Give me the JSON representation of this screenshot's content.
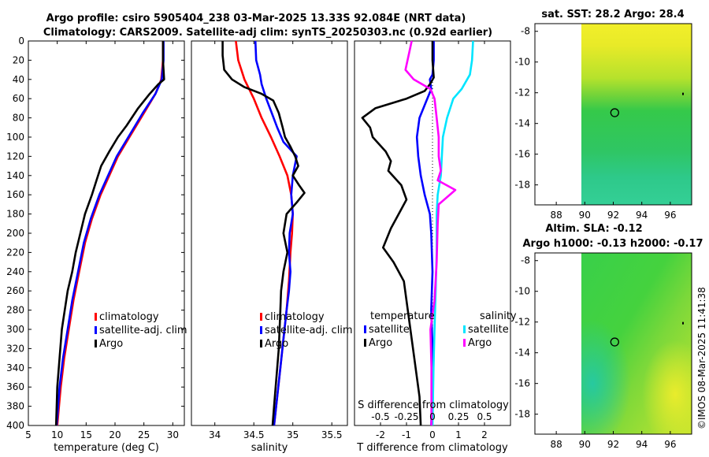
{
  "titles": {
    "line1": "Argo profile: csiro 5905404_238 03-Mar-2025 13.33S 92.084E (NRT data)",
    "line2": "Climatology: CARS2009. Satellite-adj clim: synTS_20250303.nc (0.92d earlier)"
  },
  "footer": "©IMOS 08-Mar-2025 11:41:38",
  "colors": {
    "climatology": "#ff0000",
    "satellite": "#0000ff",
    "argo": "#000000",
    "sal_satellite": "#00e5ff",
    "sal_argo": "#ff00ff",
    "frame": "#000000"
  },
  "chart_data": [
    {
      "type": "line",
      "id": "temperature",
      "xlabel": "temperature (deg C)",
      "ylabel": "",
      "xlim": [
        5,
        32
      ],
      "ylim": [
        400,
        0
      ],
      "xticks": [
        5,
        10,
        15,
        20,
        25,
        30
      ],
      "yticks": [
        0,
        20,
        40,
        60,
        80,
        100,
        120,
        140,
        160,
        180,
        200,
        220,
        240,
        260,
        280,
        300,
        320,
        340,
        360,
        380,
        400
      ],
      "legend": [
        "climatology",
        "satellite-adj. clim",
        "Argo"
      ],
      "series": [
        {
          "name": "climatology",
          "color": "#ff0000",
          "points": [
            [
              28.3,
              0
            ],
            [
              28.3,
              20
            ],
            [
              28.0,
              40
            ],
            [
              27.0,
              55
            ],
            [
              25.0,
              75
            ],
            [
              22.5,
              100
            ],
            [
              20.5,
              120
            ],
            [
              19.0,
              140
            ],
            [
              17.5,
              160
            ],
            [
              16.0,
              185
            ],
            [
              14.8,
              210
            ],
            [
              13.8,
              240
            ],
            [
              12.8,
              270
            ],
            [
              12.0,
              300
            ],
            [
              11.2,
              330
            ],
            [
              10.6,
              360
            ],
            [
              10.0,
              400
            ]
          ]
        },
        {
          "name": "satellite-adj. clim",
          "color": "#0000ff",
          "points": [
            [
              28.4,
              0
            ],
            [
              28.4,
              20
            ],
            [
              28.1,
              40
            ],
            [
              27.0,
              55
            ],
            [
              24.8,
              75
            ],
            [
              22.3,
              100
            ],
            [
              20.3,
              120
            ],
            [
              18.8,
              140
            ],
            [
              17.3,
              160
            ],
            [
              15.8,
              185
            ],
            [
              14.6,
              210
            ],
            [
              13.6,
              240
            ],
            [
              12.6,
              270
            ],
            [
              11.8,
              300
            ],
            [
              11.0,
              330
            ],
            [
              10.4,
              360
            ],
            [
              9.9,
              400
            ]
          ]
        },
        {
          "name": "Argo",
          "color": "#000000",
          "points": [
            [
              28.3,
              0
            ],
            [
              28.3,
              20
            ],
            [
              28.5,
              40
            ],
            [
              27.5,
              45
            ],
            [
              26.0,
              55
            ],
            [
              24.0,
              70
            ],
            [
              22.0,
              88
            ],
            [
              20.5,
              100
            ],
            [
              19.0,
              115
            ],
            [
              17.6,
              130
            ],
            [
              16.8,
              145
            ],
            [
              16.0,
              160
            ],
            [
              14.8,
              180
            ],
            [
              14.0,
              200
            ],
            [
              13.2,
              220
            ],
            [
              12.6,
              240
            ],
            [
              11.8,
              260
            ],
            [
              11.3,
              280
            ],
            [
              10.8,
              300
            ],
            [
              10.4,
              330
            ],
            [
              10.0,
              360
            ],
            [
              9.8,
              400
            ]
          ]
        }
      ]
    },
    {
      "type": "line",
      "id": "salinity",
      "xlabel": "salinity",
      "xlim": [
        33.7,
        35.7
      ],
      "ylim": [
        400,
        0
      ],
      "xticks": [
        34,
        34.5,
        35,
        35.5
      ],
      "legend": [
        "climatology",
        "satellite-adj. clim",
        "Argo"
      ],
      "series": [
        {
          "name": "climatology",
          "color": "#ff0000",
          "points": [
            [
              34.27,
              0
            ],
            [
              34.3,
              20
            ],
            [
              34.38,
              40
            ],
            [
              34.5,
              60
            ],
            [
              34.6,
              80
            ],
            [
              34.72,
              100
            ],
            [
              34.83,
              120
            ],
            [
              34.93,
              140
            ],
            [
              34.98,
              160
            ],
            [
              35.0,
              180
            ],
            [
              34.99,
              200
            ],
            [
              34.97,
              220
            ],
            [
              34.95,
              250
            ],
            [
              34.92,
              280
            ],
            [
              34.88,
              310
            ],
            [
              34.84,
              340
            ],
            [
              34.8,
              370
            ],
            [
              34.76,
              400
            ]
          ]
        },
        {
          "name": "satellite-adj. clim",
          "color": "#0000ff",
          "points": [
            [
              34.52,
              0
            ],
            [
              34.53,
              20
            ],
            [
              34.58,
              35
            ],
            [
              34.6,
              45
            ],
            [
              34.66,
              60
            ],
            [
              34.73,
              75
            ],
            [
              34.8,
              90
            ],
            [
              34.88,
              105
            ],
            [
              35.05,
              120
            ],
            [
              35.0,
              140
            ],
            [
              34.98,
              160
            ],
            [
              35.0,
              180
            ],
            [
              34.96,
              200
            ],
            [
              34.95,
              220
            ],
            [
              34.97,
              240
            ],
            [
              34.95,
              260
            ],
            [
              34.92,
              280
            ],
            [
              34.88,
              310
            ],
            [
              34.84,
              340
            ],
            [
              34.8,
              370
            ],
            [
              34.76,
              400
            ]
          ]
        },
        {
          "name": "Argo",
          "color": "#000000",
          "points": [
            [
              34.1,
              0
            ],
            [
              34.1,
              15
            ],
            [
              34.12,
              30
            ],
            [
              34.22,
              40
            ],
            [
              34.38,
              48
            ],
            [
              34.6,
              55
            ],
            [
              34.75,
              62
            ],
            [
              34.82,
              75
            ],
            [
              34.87,
              90
            ],
            [
              34.9,
              100
            ],
            [
              34.97,
              110
            ],
            [
              35.03,
              120
            ],
            [
              35.07,
              130
            ],
            [
              35.0,
              140
            ],
            [
              35.08,
              150
            ],
            [
              35.15,
              158
            ],
            [
              35.05,
              168
            ],
            [
              34.92,
              180
            ],
            [
              34.88,
              200
            ],
            [
              34.93,
              220
            ],
            [
              34.88,
              240
            ],
            [
              34.85,
              260
            ],
            [
              34.84,
              280
            ],
            [
              34.83,
              300
            ],
            [
              34.82,
              320
            ],
            [
              34.8,
              340
            ],
            [
              34.78,
              360
            ],
            [
              34.76,
              380
            ],
            [
              34.74,
              400
            ]
          ]
        }
      ]
    },
    {
      "type": "line",
      "id": "difference",
      "xlabel": "T difference from climatology",
      "top_xlabel": "S difference from climatology",
      "xlim": [
        -3.0,
        3.0
      ],
      "ylim": [
        400,
        0
      ],
      "xticks": [
        -2,
        -1,
        0,
        1,
        2
      ],
      "top_xticks": [
        "-0.5",
        "-0.25",
        "0",
        "0.25",
        "0.5"
      ],
      "legend_temperature_title": "temperature",
      "legend_salinity_title": "salinity",
      "legend": [
        "satellite",
        "Argo",
        "satellite",
        "Argo"
      ],
      "series": [
        {
          "name": "T satellite",
          "color": "#0000ff",
          "points": [
            [
              0.05,
              0
            ],
            [
              0.05,
              20
            ],
            [
              0.0,
              35
            ],
            [
              -0.1,
              40
            ],
            [
              -0.05,
              50
            ],
            [
              -0.2,
              60
            ],
            [
              -0.5,
              80
            ],
            [
              -0.6,
              100
            ],
            [
              -0.55,
              120
            ],
            [
              -0.45,
              140
            ],
            [
              -0.3,
              160
            ],
            [
              -0.1,
              180
            ],
            [
              -0.05,
              200
            ],
            [
              0.0,
              240
            ],
            [
              -0.05,
              280
            ],
            [
              0.0,
              320
            ],
            [
              0.0,
              360
            ],
            [
              -0.05,
              400
            ]
          ]
        },
        {
          "name": "T Argo",
          "color": "#000000",
          "points": [
            [
              0.0,
              0
            ],
            [
              0.0,
              20
            ],
            [
              0.05,
              38
            ],
            [
              -0.1,
              45
            ],
            [
              -0.3,
              52
            ],
            [
              -1.0,
              60
            ],
            [
              -2.2,
              70
            ],
            [
              -2.7,
              80
            ],
            [
              -2.4,
              90
            ],
            [
              -2.3,
              100
            ],
            [
              -1.8,
              115
            ],
            [
              -1.6,
              125
            ],
            [
              -1.7,
              135
            ],
            [
              -1.2,
              150
            ],
            [
              -1.0,
              165
            ],
            [
              -1.3,
              180
            ],
            [
              -1.6,
              195
            ],
            [
              -1.9,
              215
            ],
            [
              -1.5,
              230
            ],
            [
              -1.1,
              250
            ],
            [
              -1.0,
              270
            ],
            [
              -0.9,
              290
            ],
            [
              -0.8,
              310
            ],
            [
              -0.7,
              330
            ],
            [
              -0.6,
              350
            ],
            [
              -0.5,
              370
            ],
            [
              -0.45,
              400
            ]
          ]
        },
        {
          "name": "S satellite",
          "color": "#00e5ff",
          "points": [
            [
              0.39,
              0
            ],
            [
              0.38,
              20
            ],
            [
              0.36,
              35
            ],
            [
              0.28,
              50
            ],
            [
              0.2,
              60
            ],
            [
              0.14,
              80
            ],
            [
              0.1,
              100
            ],
            [
              0.09,
              120
            ],
            [
              0.08,
              140
            ],
            [
              0.05,
              160
            ],
            [
              0.04,
              180
            ],
            [
              0.04,
              220
            ],
            [
              0.03,
              260
            ],
            [
              0.02,
              300
            ],
            [
              0.01,
              340
            ],
            [
              0.0,
              400
            ]
          ]
        },
        {
          "name": "S Argo",
          "color": "#ff00ff",
          "points": [
            [
              -0.2,
              0
            ],
            [
              -0.22,
              10
            ],
            [
              -0.26,
              30
            ],
            [
              -0.18,
              40
            ],
            [
              -0.1,
              45
            ],
            [
              -0.02,
              50
            ],
            [
              0.02,
              60
            ],
            [
              0.04,
              80
            ],
            [
              0.06,
              100
            ],
            [
              0.06,
              120
            ],
            [
              0.08,
              135
            ],
            [
              0.05,
              145
            ],
            [
              0.22,
              155
            ],
            [
              0.06,
              170
            ],
            [
              0.05,
              190
            ],
            [
              0.04,
              230
            ],
            [
              0.02,
              270
            ],
            [
              -0.02,
              300
            ],
            [
              -0.01,
              340
            ],
            [
              -0.01,
              400
            ]
          ]
        }
      ]
    },
    {
      "type": "heatmap",
      "id": "sst_map",
      "title": "sat. SST: 28.2 Argo: 28.4",
      "xlim": [
        86.5,
        97.5
      ],
      "ylim": [
        -19.3,
        -7.5
      ],
      "xticks": [
        88,
        90,
        92,
        94,
        96
      ],
      "yticks": [
        -8,
        -10,
        -12,
        -14,
        -16,
        -18
      ],
      "marker": {
        "lon": 92.1,
        "lat": -13.3
      }
    },
    {
      "type": "heatmap",
      "id": "sla_map",
      "title": "Altim. SLA: -0.12",
      "subtitle": "Argo h1000: -0.13 h2000: -0.17",
      "xlim": [
        86.5,
        97.5
      ],
      "ylim": [
        -19.3,
        -7.5
      ],
      "xticks": [
        88,
        90,
        92,
        94,
        96
      ],
      "yticks": [
        -8,
        -10,
        -12,
        -14,
        -16,
        -18
      ],
      "marker": {
        "lon": 92.1,
        "lat": -13.3
      }
    }
  ]
}
